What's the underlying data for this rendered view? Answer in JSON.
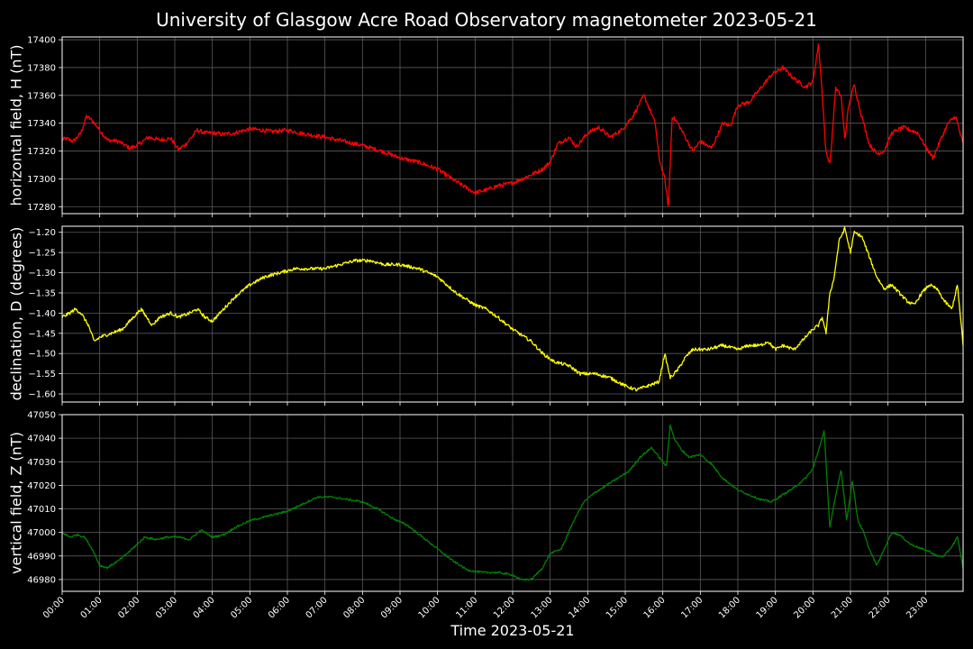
{
  "title": "University of Glasgow Acre Road Observatory magnetometer 2023-05-21",
  "xlabel": "Time 2023-05-21",
  "colors": {
    "background": "#000000",
    "grid": "#5a5a5a",
    "text": "#ffffff"
  },
  "chart_data": [
    {
      "type": "line",
      "ylabel": "horizontal field, H (nT)",
      "color": "#ff0000",
      "xlim": [
        0,
        24
      ],
      "ylim": [
        17275,
        17402
      ],
      "yticks": [
        17280,
        17300,
        17320,
        17340,
        17360,
        17380,
        17400
      ],
      "ytick_labels": [
        "17280",
        "17300",
        "17320",
        "17340",
        "17360",
        "17380",
        "17400"
      ],
      "noise": 1.5,
      "x": [
        0,
        0.1,
        0.3,
        0.5,
        0.65,
        0.8,
        1.0,
        1.2,
        1.5,
        1.8,
        2.0,
        2.3,
        2.6,
        2.9,
        3.1,
        3.3,
        3.6,
        3.8,
        4.0,
        4.3,
        4.6,
        5.0,
        5.3,
        5.6,
        6.0,
        6.5,
        7.0,
        7.5,
        8.0,
        8.5,
        9.0,
        9.5,
        10.0,
        10.5,
        11.0,
        11.3,
        11.6,
        12.0,
        12.5,
        12.8,
        13.0,
        13.2,
        13.5,
        13.7,
        14.0,
        14.3,
        14.6,
        14.9,
        15.2,
        15.5,
        15.8,
        15.9,
        16.05,
        16.15,
        16.25,
        16.4,
        16.6,
        16.8,
        17.0,
        17.3,
        17.6,
        17.8,
        18.0,
        18.3,
        18.6,
        18.9,
        19.2,
        19.5,
        19.8,
        20.0,
        20.15,
        20.25,
        20.35,
        20.45,
        20.5,
        20.6,
        20.75,
        20.85,
        20.95,
        21.1,
        21.25,
        21.5,
        21.7,
        21.9,
        22.1,
        22.4,
        22.8,
        23.0,
        23.2,
        23.4,
        23.6,
        23.8,
        24.0
      ],
      "y": [
        17328,
        17329,
        17327,
        17333,
        17345,
        17342,
        17335,
        17328,
        17327,
        17322,
        17324,
        17330,
        17328,
        17329,
        17321,
        17325,
        17335,
        17333,
        17333,
        17332,
        17333,
        17336,
        17335,
        17334,
        17335,
        17332,
        17330,
        17327,
        17324,
        17320,
        17315,
        17312,
        17307,
        17298,
        17290,
        17292,
        17295,
        17297,
        17303,
        17307,
        17312,
        17325,
        17330,
        17323,
        17333,
        17337,
        17330,
        17335,
        17345,
        17360,
        17340,
        17315,
        17300,
        17280,
        17345,
        17340,
        17330,
        17320,
        17327,
        17322,
        17340,
        17338,
        17353,
        17355,
        17365,
        17375,
        17380,
        17372,
        17366,
        17370,
        17397,
        17360,
        17318,
        17312,
        17325,
        17365,
        17360,
        17328,
        17352,
        17368,
        17350,
        17325,
        17318,
        17320,
        17333,
        17337,
        17333,
        17323,
        17315,
        17328,
        17340,
        17345,
        17325
      ]
    },
    {
      "type": "line",
      "ylabel": "declination, D (degrees)",
      "color": "#ffff00",
      "xlim": [
        0,
        24
      ],
      "ylim": [
        -1.62,
        -1.185
      ],
      "yticks": [
        -1.6,
        -1.55,
        -1.5,
        -1.45,
        -1.4,
        -1.35,
        -1.3,
        -1.25,
        -1.2
      ],
      "ytick_labels": [
        "−1.60",
        "−1.55",
        "−1.50",
        "−1.45",
        "−1.40",
        "−1.35",
        "−1.30",
        "−1.25",
        "−1.20"
      ],
      "noise": 0.004,
      "x": [
        0,
        0.2,
        0.35,
        0.5,
        0.7,
        0.85,
        1.0,
        1.3,
        1.6,
        1.9,
        2.1,
        2.4,
        2.6,
        2.9,
        3.1,
        3.4,
        3.6,
        3.8,
        4.0,
        4.3,
        4.6,
        5.0,
        5.4,
        5.8,
        6.2,
        6.6,
        7.0,
        7.4,
        7.8,
        8.2,
        8.6,
        9.0,
        9.5,
        10.0,
        10.5,
        11.0,
        11.3,
        11.6,
        12.0,
        12.5,
        12.8,
        13.1,
        13.5,
        13.8,
        14.2,
        14.6,
        15.0,
        15.3,
        15.6,
        15.9,
        16.05,
        16.2,
        16.4,
        16.6,
        16.8,
        17.2,
        17.6,
        18.0,
        18.3,
        18.6,
        18.8,
        19.0,
        19.2,
        19.5,
        19.8,
        20.0,
        20.15,
        20.25,
        20.35,
        20.45,
        20.55,
        20.7,
        20.85,
        21.0,
        21.1,
        21.3,
        21.5,
        21.7,
        21.9,
        22.1,
        22.3,
        22.5,
        22.7,
        22.9,
        23.1,
        23.3,
        23.5,
        23.7,
        23.85,
        24.0
      ],
      "y": [
        -1.41,
        -1.4,
        -1.39,
        -1.4,
        -1.43,
        -1.47,
        -1.46,
        -1.45,
        -1.44,
        -1.41,
        -1.39,
        -1.43,
        -1.41,
        -1.4,
        -1.41,
        -1.4,
        -1.39,
        -1.41,
        -1.42,
        -1.39,
        -1.36,
        -1.33,
        -1.31,
        -1.3,
        -1.29,
        -1.29,
        -1.29,
        -1.28,
        -1.27,
        -1.27,
        -1.28,
        -1.28,
        -1.29,
        -1.31,
        -1.35,
        -1.38,
        -1.39,
        -1.41,
        -1.44,
        -1.47,
        -1.5,
        -1.52,
        -1.53,
        -1.55,
        -1.55,
        -1.56,
        -1.58,
        -1.59,
        -1.58,
        -1.57,
        -1.5,
        -1.56,
        -1.54,
        -1.51,
        -1.49,
        -1.49,
        -1.48,
        -1.49,
        -1.48,
        -1.48,
        -1.47,
        -1.49,
        -1.48,
        -1.49,
        -1.46,
        -1.44,
        -1.43,
        -1.41,
        -1.45,
        -1.35,
        -1.32,
        -1.22,
        -1.19,
        -1.25,
        -1.2,
        -1.21,
        -1.26,
        -1.31,
        -1.34,
        -1.33,
        -1.35,
        -1.37,
        -1.38,
        -1.35,
        -1.33,
        -1.34,
        -1.37,
        -1.39,
        -1.33,
        -1.48
      ]
    },
    {
      "type": "line",
      "ylabel": "vertical field, Z (nT)",
      "color": "#008000",
      "xlim": [
        0,
        24
      ],
      "ylim": [
        46975,
        47050
      ],
      "yticks": [
        46980,
        46990,
        47000,
        47010,
        47020,
        47030,
        47040,
        47050
      ],
      "ytick_labels": [
        "46980",
        "46990",
        "47000",
        "47010",
        "47020",
        "47030",
        "47040",
        "47050"
      ],
      "noise": 0.4,
      "x": [
        0,
        0.2,
        0.4,
        0.6,
        0.8,
        1.0,
        1.2,
        1.5,
        1.8,
        2.0,
        2.2,
        2.5,
        2.8,
        3.1,
        3.4,
        3.7,
        4.0,
        4.3,
        4.6,
        5.0,
        5.5,
        6.0,
        6.4,
        6.8,
        7.2,
        7.6,
        8.0,
        8.4,
        8.8,
        9.2,
        9.6,
        10.0,
        10.4,
        10.8,
        11.2,
        11.6,
        12.0,
        12.2,
        12.5,
        12.8,
        13.0,
        13.3,
        13.6,
        13.9,
        14.2,
        14.5,
        14.8,
        15.1,
        15.4,
        15.7,
        16.0,
        16.1,
        16.2,
        16.3,
        16.5,
        16.7,
        17.0,
        17.3,
        17.6,
        18.0,
        18.3,
        18.6,
        18.9,
        19.2,
        19.5,
        19.8,
        20.0,
        20.15,
        20.3,
        20.45,
        20.6,
        20.75,
        20.9,
        21.05,
        21.2,
        21.35,
        21.5,
        21.7,
        21.9,
        22.1,
        22.3,
        22.6,
        22.9,
        23.1,
        23.3,
        23.5,
        23.7,
        23.85,
        24.0
      ],
      "y": [
        47000,
        46998,
        46999,
        46998,
        46993,
        46986,
        46985,
        46988,
        46992,
        46995,
        46998,
        46997,
        46998,
        46998,
        46997,
        47001,
        46998,
        46999,
        47002,
        47005,
        47007,
        47009,
        47012,
        47015,
        47015,
        47014,
        47013,
        47010,
        47006,
        47003,
        46998,
        46993,
        46988,
        46984,
        46983,
        46983,
        46982,
        46980,
        46980,
        46985,
        46991,
        46993,
        47004,
        47013,
        47017,
        47020,
        47023,
        47026,
        47032,
        47036,
        47030,
        47028,
        47046,
        47040,
        47035,
        47032,
        47033,
        47029,
        47023,
        47018,
        47016,
        47014,
        47013,
        47016,
        47019,
        47023,
        47027,
        47035,
        47043,
        47002,
        47015,
        47027,
        47005,
        47022,
        47005,
        47000,
        46993,
        46986,
        46993,
        47000,
        46999,
        46995,
        46993,
        46992,
        46990,
        46990,
        46994,
        46998,
        46985
      ]
    }
  ],
  "x_ticks": [
    "00:00",
    "01:00",
    "02:00",
    "03:00",
    "04:00",
    "05:00",
    "06:00",
    "07:00",
    "08:00",
    "09:00",
    "10:00",
    "11:00",
    "12:00",
    "13:00",
    "14:00",
    "15:00",
    "16:00",
    "17:00",
    "18:00",
    "19:00",
    "20:00",
    "21:00",
    "22:00",
    "23:00"
  ]
}
